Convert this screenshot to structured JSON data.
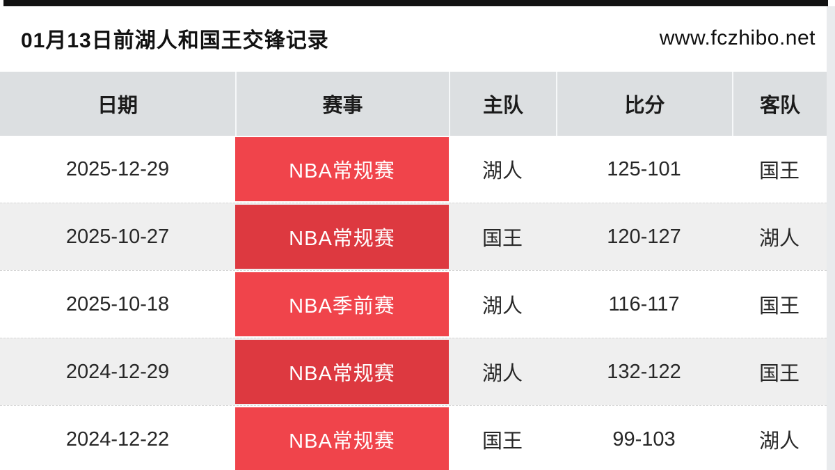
{
  "page": {
    "title": "01月13日前湖人和国王交锋记录",
    "site_url": "www.fczhibo.net"
  },
  "table": {
    "columns": [
      "日期",
      "赛事",
      "主队",
      "比分",
      "客队"
    ],
    "rows": [
      {
        "date": "2025-12-29",
        "event": "NBA常规赛",
        "home": "湖人",
        "score": "125-101",
        "away": "国王"
      },
      {
        "date": "2025-10-27",
        "event": "NBA常规赛",
        "home": "国王",
        "score": "120-127",
        "away": "湖人"
      },
      {
        "date": "2025-10-18",
        "event": "NBA季前赛",
        "home": "湖人",
        "score": "116-117",
        "away": "国王"
      },
      {
        "date": "2024-12-29",
        "event": "NBA常规赛",
        "home": "湖人",
        "score": "132-122",
        "away": "国王"
      },
      {
        "date": "2024-12-22",
        "event": "NBA常规赛",
        "home": "国王",
        "score": "99-103",
        "away": "湖人"
      }
    ]
  },
  "colors": {
    "event_red_light": "#f0444b",
    "event_red_dark": "#dd3940",
    "header_bg": "#dcdfe1",
    "row_alt_bg": "#efefef",
    "row_bg": "#ffffff",
    "topbar_black": "#121212"
  }
}
